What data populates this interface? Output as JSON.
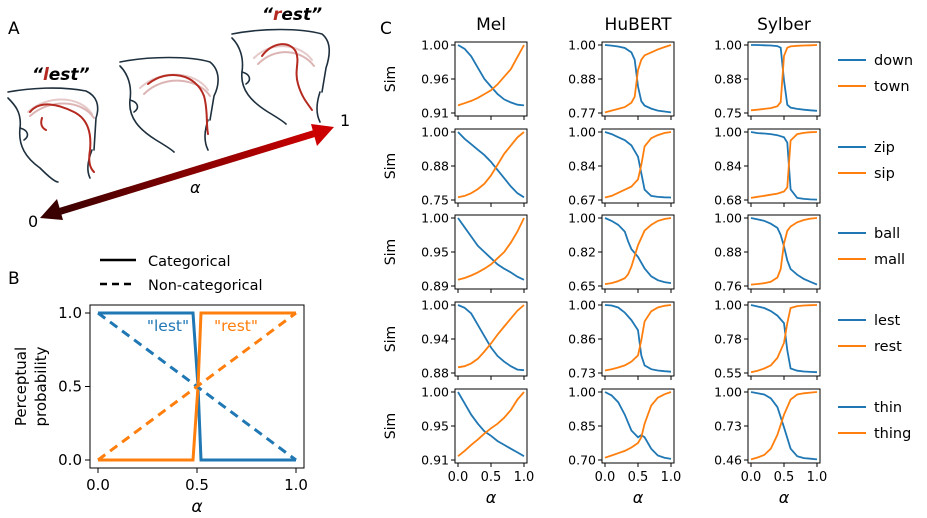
{
  "panel_labels": {
    "a": "A",
    "b": "B",
    "c": "C"
  },
  "colors": {
    "blue": "#1f77b4",
    "orange": "#ff7f0e",
    "arrow_dark": "#3a0000",
    "arrow_bright": "#cc0000",
    "tongue": "#b52a20",
    "outline": "#1e2f3d"
  },
  "panel_a": {
    "words": [
      {
        "open": "“",
        "highlight": "l",
        "rest": "est",
        "close": "”"
      },
      {
        "open": "“",
        "highlight": "r",
        "rest": "est",
        "close": "”"
      }
    ],
    "axis_symbol": "α",
    "end_label_0": "0",
    "end_label_1": "1"
  },
  "chart_data": [
    {
      "id": "perceptual",
      "type": "line",
      "xlabel": "α",
      "ylabel_lines": [
        "Perceptual",
        "probability"
      ],
      "xlim": [
        0,
        1
      ],
      "ylim": [
        0,
        1
      ],
      "xticks": [
        "0.0",
        "0.5",
        "1.0"
      ],
      "yticks": [
        "0.0",
        "0.5",
        "1.0"
      ],
      "legend": [
        {
          "label": "Categorical",
          "style": "solid"
        },
        {
          "label": "Non-categorical",
          "style": "dashed"
        }
      ],
      "annotations": [
        {
          "text": "\"lest\"",
          "color": "blue"
        },
        {
          "text": "\"rest\"",
          "color": "orange"
        }
      ],
      "series": [
        {
          "name": "\"lest\"",
          "style": "solid",
          "color": "blue",
          "x": [
            0,
            0.48,
            0.505,
            0.52,
            1.0
          ],
          "y": [
            1,
            1,
            0.5,
            0,
            0
          ]
        },
        {
          "name": "\"rest\"",
          "style": "solid",
          "color": "orange",
          "x": [
            0,
            0.48,
            0.505,
            0.52,
            1.0
          ],
          "y": [
            0,
            0,
            0.5,
            1,
            1
          ]
        },
        {
          "name": "\"lest\"",
          "style": "dashed",
          "color": "blue",
          "x": [
            0,
            1
          ],
          "y": [
            1,
            0
          ]
        },
        {
          "name": "\"rest\"",
          "style": "dashed",
          "color": "orange",
          "x": [
            0,
            1
          ],
          "y": [
            0,
            1
          ]
        }
      ]
    },
    {
      "id": "similarity_grid",
      "type": "line",
      "columns": [
        "Mel",
        "HuBERT",
        "Sylber"
      ],
      "ylabel": "Sim",
      "xlabel": "α",
      "xlim": [
        0,
        1
      ],
      "xticks": [
        "0.0",
        "0.5",
        "1.0"
      ],
      "rows": [
        {
          "words": [
            "down",
            "town"
          ],
          "ticks": [
            [
              "1.00",
              "0.96",
              "0.91"
            ],
            [
              "1.00",
              "0.88",
              "0.77"
            ],
            [
              "1.00",
              "0.88",
              "0.75"
            ]
          ],
          "ylim": [
            [
              0.91,
              1.0
            ],
            [
              0.77,
              1.0
            ],
            [
              0.75,
              1.0
            ]
          ]
        },
        {
          "words": [
            "zip",
            "sip"
          ],
          "ticks": [
            [
              "1.00",
              "0.88",
              "0.75"
            ],
            [
              "1.00",
              "0.84",
              "0.67"
            ],
            [
              "1.00",
              "0.84",
              "0.68"
            ]
          ],
          "ylim": [
            [
              0.75,
              1.0
            ],
            [
              0.67,
              1.0
            ],
            [
              0.68,
              1.0
            ]
          ]
        },
        {
          "words": [
            "ball",
            "mall"
          ],
          "ticks": [
            [
              "1.00",
              "0.95",
              "0.89"
            ],
            [
              "1.00",
              "0.82",
              "0.65"
            ],
            [
              "1.00",
              "0.88",
              "0.76"
            ]
          ],
          "ylim": [
            [
              0.89,
              1.0
            ],
            [
              0.65,
              1.0
            ],
            [
              0.76,
              1.0
            ]
          ]
        },
        {
          "words": [
            "lest",
            "rest"
          ],
          "ticks": [
            [
              "1.00",
              "0.94",
              "0.88"
            ],
            [
              "1.00",
              "0.86",
              "0.73"
            ],
            [
              "1.00",
              "0.78",
              "0.55"
            ]
          ],
          "ylim": [
            [
              0.88,
              1.0
            ],
            [
              0.73,
              1.0
            ],
            [
              0.55,
              1.0
            ]
          ]
        },
        {
          "words": [
            "thin",
            "thing"
          ],
          "ticks": [
            [
              "1.00",
              "0.95",
              "0.91"
            ],
            [
              "1.00",
              "0.85",
              "0.70"
            ],
            [
              "1.00",
              "0.73",
              "0.46"
            ]
          ],
          "ylim": [
            [
              0.91,
              1.0
            ],
            [
              0.7,
              1.0
            ],
            [
              0.46,
              1.0
            ]
          ]
        }
      ],
      "curves": {
        "Mel": [
          {
            "x": [
              0,
              0.1,
              0.2,
              0.3,
              0.4,
              0.5,
              0.6,
              0.7,
              0.8,
              0.9,
              1.0
            ],
            "first": [
              1.0,
              0.995,
              0.985,
              0.97,
              0.955,
              0.945,
              0.935,
              0.928,
              0.924,
              0.921,
              0.92
            ],
            "second": [
              0.92,
              0.923,
              0.926,
              0.93,
              0.935,
              0.94,
              0.948,
              0.958,
              0.968,
              0.984,
              1.0
            ]
          },
          {
            "x": [
              0,
              0.1,
              0.2,
              0.3,
              0.4,
              0.5,
              0.6,
              0.7,
              0.8,
              0.9,
              1.0
            ],
            "first": [
              1.0,
              0.975,
              0.955,
              0.935,
              0.915,
              0.89,
              0.86,
              0.83,
              0.8,
              0.775,
              0.76
            ],
            "second": [
              0.76,
              0.765,
              0.775,
              0.79,
              0.81,
              0.84,
              0.88,
              0.92,
              0.95,
              0.98,
              1.0
            ]
          },
          {
            "x": [
              0,
              0.1,
              0.2,
              0.3,
              0.4,
              0.5,
              0.6,
              0.7,
              0.8,
              0.9,
              1.0
            ],
            "first": [
              1.0,
              0.985,
              0.97,
              0.955,
              0.945,
              0.935,
              0.925,
              0.918,
              0.912,
              0.905,
              0.9
            ],
            "second": [
              0.9,
              0.903,
              0.907,
              0.912,
              0.918,
              0.925,
              0.935,
              0.945,
              0.96,
              0.978,
              1.0
            ]
          },
          {
            "x": [
              0,
              0.1,
              0.2,
              0.3,
              0.4,
              0.5,
              0.6,
              0.7,
              0.8,
              0.9,
              1.0
            ],
            "first": [
              1.0,
              0.995,
              0.985,
              0.965,
              0.945,
              0.925,
              0.91,
              0.9,
              0.892,
              0.886,
              0.885
            ],
            "second": [
              0.89,
              0.892,
              0.897,
              0.905,
              0.918,
              0.932,
              0.948,
              0.962,
              0.976,
              0.99,
              1.0
            ]
          },
          {
            "x": [
              0,
              0.1,
              0.2,
              0.3,
              0.4,
              0.5,
              0.6,
              0.7,
              0.8,
              0.9,
              1.0
            ],
            "first": [
              1.0,
              0.985,
              0.97,
              0.958,
              0.948,
              0.942,
              0.935,
              0.93,
              0.925,
              0.92,
              0.915
            ],
            "second": [
              0.915,
              0.922,
              0.93,
              0.937,
              0.945,
              0.952,
              0.958,
              0.966,
              0.976,
              0.99,
              1.0
            ]
          }
        ],
        "HuBERT": [
          {
            "x": [
              0,
              0.1,
              0.2,
              0.3,
              0.4,
              0.45,
              0.5,
              0.55,
              0.6,
              0.7,
              0.8,
              0.9,
              1.0
            ],
            "first": [
              1.0,
              0.998,
              0.995,
              0.99,
              0.975,
              0.95,
              0.86,
              0.81,
              0.795,
              0.785,
              0.778,
              0.775,
              0.772
            ],
            "second": [
              0.772,
              0.778,
              0.784,
              0.79,
              0.805,
              0.825,
              0.915,
              0.95,
              0.965,
              0.975,
              0.985,
              0.993,
              1.0
            ]
          },
          {
            "x": [
              0,
              0.1,
              0.2,
              0.3,
              0.4,
              0.5,
              0.55,
              0.6,
              0.7,
              0.8,
              0.9,
              1.0
            ],
            "first": [
              1.0,
              0.99,
              0.975,
              0.96,
              0.935,
              0.88,
              0.8,
              0.72,
              0.69,
              0.685,
              0.683,
              0.682
            ],
            "second": [
              0.682,
              0.69,
              0.705,
              0.72,
              0.735,
              0.77,
              0.84,
              0.93,
              0.97,
              0.985,
              0.995,
              1.0
            ]
          },
          {
            "x": [
              0,
              0.1,
              0.2,
              0.3,
              0.35,
              0.4,
              0.5,
              0.6,
              0.7,
              0.8,
              0.9,
              1.0
            ],
            "first": [
              1.0,
              0.985,
              0.965,
              0.93,
              0.88,
              0.84,
              0.8,
              0.74,
              0.7,
              0.68,
              0.67,
              0.665
            ],
            "second": [
              0.66,
              0.665,
              0.675,
              0.69,
              0.71,
              0.75,
              0.86,
              0.935,
              0.965,
              0.985,
              0.995,
              1.0
            ]
          },
          {
            "x": [
              0,
              0.1,
              0.2,
              0.3,
              0.4,
              0.5,
              0.55,
              0.6,
              0.7,
              0.8,
              0.9,
              1.0
            ],
            "first": [
              1.0,
              0.998,
              0.99,
              0.97,
              0.94,
              0.9,
              0.8,
              0.76,
              0.745,
              0.74,
              0.737,
              0.735
            ],
            "second": [
              0.74,
              0.745,
              0.752,
              0.76,
              0.775,
              0.8,
              0.86,
              0.935,
              0.975,
              0.99,
              0.997,
              1.0
            ]
          },
          {
            "x": [
              0,
              0.1,
              0.2,
              0.3,
              0.4,
              0.5,
              0.55,
              0.6,
              0.7,
              0.8,
              0.9,
              1.0
            ],
            "first": [
              1.0,
              0.985,
              0.955,
              0.9,
              0.83,
              0.8,
              0.81,
              0.8,
              0.75,
              0.72,
              0.71,
              0.705
            ],
            "second": [
              0.71,
              0.72,
              0.73,
              0.74,
              0.755,
              0.775,
              0.8,
              0.86,
              0.94,
              0.975,
              0.99,
              1.0
            ]
          }
        ],
        "Sylber": [
          {
            "x": [
              0,
              0.1,
              0.2,
              0.3,
              0.4,
              0.45,
              0.5,
              0.55,
              0.6,
              0.7,
              0.8,
              0.9,
              1.0
            ],
            "first": [
              1.0,
              1.0,
              0.999,
              0.998,
              0.996,
              0.99,
              0.87,
              0.78,
              0.77,
              0.765,
              0.762,
              0.76,
              0.758
            ],
            "second": [
              0.76,
              0.762,
              0.765,
              0.768,
              0.775,
              0.79,
              0.96,
              0.99,
              0.995,
              0.997,
              0.998,
              0.999,
              1.0
            ]
          },
          {
            "x": [
              0,
              0.1,
              0.2,
              0.3,
              0.4,
              0.5,
              0.55,
              0.6,
              0.7,
              0.8,
              0.9,
              1.0
            ],
            "first": [
              1.0,
              0.995,
              0.993,
              0.99,
              0.985,
              0.975,
              0.95,
              0.73,
              0.69,
              0.685,
              0.683,
              0.682
            ],
            "second": [
              0.69,
              0.695,
              0.7,
              0.705,
              0.71,
              0.72,
              0.74,
              0.96,
              0.99,
              0.996,
              0.999,
              1.0
            ]
          },
          {
            "x": [
              0,
              0.1,
              0.2,
              0.3,
              0.4,
              0.45,
              0.5,
              0.55,
              0.6,
              0.7,
              0.8,
              0.9,
              1.0
            ],
            "first": [
              1.0,
              0.995,
              0.99,
              0.98,
              0.965,
              0.94,
              0.9,
              0.85,
              0.82,
              0.8,
              0.785,
              0.775,
              0.765
            ],
            "second": [
              0.765,
              0.767,
              0.77,
              0.775,
              0.79,
              0.82,
              0.91,
              0.955,
              0.97,
              0.985,
              0.993,
              0.998,
              1.0
            ]
          },
          {
            "x": [
              0,
              0.1,
              0.2,
              0.3,
              0.4,
              0.5,
              0.55,
              0.6,
              0.7,
              0.8,
              0.9,
              1.0
            ],
            "first": [
              1.0,
              0.99,
              0.98,
              0.96,
              0.93,
              0.88,
              0.7,
              0.58,
              0.565,
              0.56,
              0.557,
              0.555
            ],
            "second": [
              0.555,
              0.565,
              0.58,
              0.6,
              0.65,
              0.75,
              0.88,
              0.98,
              0.993,
              0.997,
              0.999,
              1.0
            ]
          },
          {
            "x": [
              0,
              0.1,
              0.2,
              0.3,
              0.4,
              0.5,
              0.6,
              0.7,
              0.8,
              0.9,
              1.0
            ],
            "first": [
              1.0,
              0.99,
              0.98,
              0.95,
              0.88,
              0.72,
              0.55,
              0.49,
              0.475,
              0.47,
              0.465
            ],
            "second": [
              0.465,
              0.48,
              0.5,
              0.55,
              0.66,
              0.82,
              0.94,
              0.98,
              0.99,
              0.995,
              1.0
            ]
          }
        ]
      }
    }
  ]
}
